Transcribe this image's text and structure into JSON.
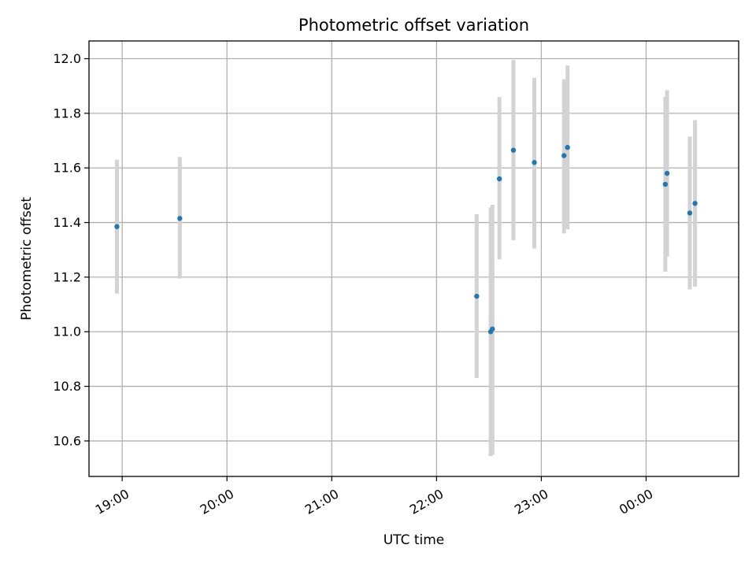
{
  "chart_data": {
    "type": "scatter",
    "title": "Photometric offset variation",
    "xlabel": "UTC time",
    "ylabel": "Photometric offset",
    "grid": true,
    "xlim": [
      "18:41",
      "00:53"
    ],
    "ylim": [
      10.47,
      12.065
    ],
    "x_ticks": [
      "19:00",
      "20:00",
      "21:00",
      "22:00",
      "23:00",
      "00:00"
    ],
    "y_ticks": [
      10.6,
      10.8,
      11.0,
      11.2,
      11.4,
      11.6,
      11.8,
      12.0
    ],
    "point_color": "#1f77b4",
    "errorbar_color": "#d3d3d3",
    "points": [
      {
        "time": "18:57",
        "y": 11.385,
        "low": 11.14,
        "high": 11.63
      },
      {
        "time": "19:33",
        "y": 11.415,
        "low": 11.195,
        "high": 11.64
      },
      {
        "time": "22:23",
        "y": 11.13,
        "low": 10.83,
        "high": 11.43
      },
      {
        "time": "22:31",
        "y": 11.0,
        "low": 10.545,
        "high": 11.455
      },
      {
        "time": "22:32",
        "y": 11.01,
        "low": 10.55,
        "high": 11.465
      },
      {
        "time": "22:36",
        "y": 11.56,
        "low": 11.265,
        "high": 11.86
      },
      {
        "time": "22:44",
        "y": 11.665,
        "low": 11.335,
        "high": 11.995
      },
      {
        "time": "22:56",
        "y": 11.62,
        "low": 11.305,
        "high": 11.93
      },
      {
        "time": "23:13",
        "y": 11.645,
        "low": 11.36,
        "high": 11.925
      },
      {
        "time": "23:15",
        "y": 11.675,
        "low": 11.375,
        "high": 11.975
      },
      {
        "time": "00:11",
        "y": 11.54,
        "low": 11.22,
        "high": 11.86
      },
      {
        "time": "00:12",
        "y": 11.58,
        "low": 11.275,
        "high": 11.885
      },
      {
        "time": "00:25",
        "y": 11.435,
        "low": 11.155,
        "high": 11.715
      },
      {
        "time": "00:28",
        "y": 11.47,
        "low": 11.165,
        "high": 11.775
      }
    ]
  }
}
